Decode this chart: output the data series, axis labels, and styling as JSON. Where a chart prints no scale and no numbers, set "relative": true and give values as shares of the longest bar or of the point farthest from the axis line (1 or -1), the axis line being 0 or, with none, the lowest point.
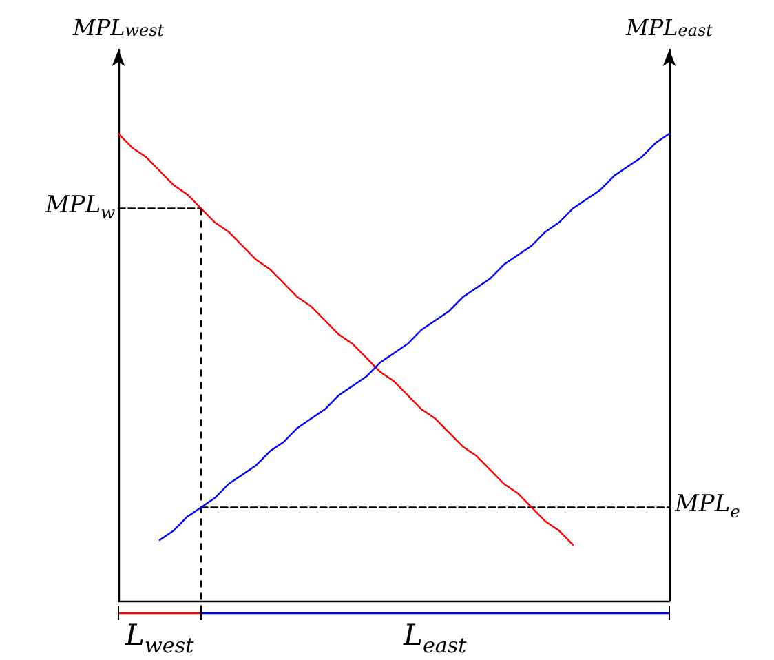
{
  "chart_data": {
    "type": "line",
    "relative": true,
    "ylabel": "MPL$_{west}$",
    "y2label": "MPL$_{east}$",
    "marker": "none",
    "categories": [
      null,
      null,
      null,
      null,
      null,
      null,
      null,
      null,
      null,
      null,
      null,
      null,
      null,
      null,
      null,
      null,
      null,
      null,
      null,
      null,
      null,
      null,
      null,
      null,
      null,
      null,
      null,
      null,
      null,
      null,
      null,
      null,
      null,
      null,
      null,
      null,
      null,
      null,
      null,
      null,
      null
    ],
    "series": [
      {
        "color": "#ff0000",
        "values": [
          1.0,
          0.97,
          0.95,
          0.92,
          0.89,
          0.87,
          0.84,
          0.81,
          0.79,
          0.76,
          0.73,
          0.71,
          0.68,
          0.65,
          0.63,
          0.6,
          0.57,
          0.55,
          0.52,
          0.49,
          0.47,
          0.44,
          0.41,
          0.39,
          0.36,
          0.33,
          0.31,
          0.28,
          0.25,
          0.23,
          0.2,
          0.17,
          0.15,
          0.12,
          null,
          null,
          null,
          null,
          null,
          null,
          null
        ]
      },
      {
        "color": "#0000ff",
        "values": [
          null,
          null,
          null,
          0.13,
          0.15,
          0.18,
          0.2,
          0.22,
          0.25,
          0.27,
          0.29,
          0.32,
          0.34,
          0.37,
          0.39,
          0.41,
          0.44,
          0.46,
          0.48,
          0.51,
          0.53,
          0.55,
          0.58,
          0.6,
          0.62,
          0.65,
          0.67,
          0.69,
          0.72,
          0.74,
          0.76,
          0.79,
          0.81,
          0.84,
          0.86,
          0.88,
          0.91,
          0.93,
          0.95,
          0.98,
          1.0
        ]
      },
      {
        "color": "#000000",
        "line_style": "dashed",
        "values": [
          0.84,
          0.84,
          0.84,
          0.84,
          0.84,
          0.84,
          0.84,
          null,
          null,
          null,
          null,
          null,
          null,
          null,
          null,
          null,
          null,
          null,
          null,
          null,
          null,
          null,
          null,
          null,
          null,
          null,
          null,
          null,
          null,
          null,
          null,
          null,
          null,
          null,
          null,
          null,
          null,
          null,
          null,
          null,
          null
        ]
      },
      {
        "color": "#000000",
        "line_style": "dashed",
        "values": [
          null,
          null,
          null,
          null,
          null,
          null,
          0.2,
          0.2,
          0.2,
          0.2,
          0.2,
          0.2,
          0.2,
          0.2,
          0.2,
          0.2,
          0.2,
          0.2,
          0.2,
          0.2,
          0.2,
          0.2,
          0.2,
          0.2,
          0.2,
          0.2,
          0.2,
          0.2,
          0.2,
          0.2,
          0.2,
          0.2,
          0.2,
          0.2,
          0.2,
          0.2,
          0.2,
          0.2,
          0.2,
          0.2,
          0.2
        ]
      }
    ],
    "annotations": [
      "MPL$_{w}$",
      "MPL$_{e}$",
      "L$_{west}$",
      "L$_{east}$"
    ]
  }
}
